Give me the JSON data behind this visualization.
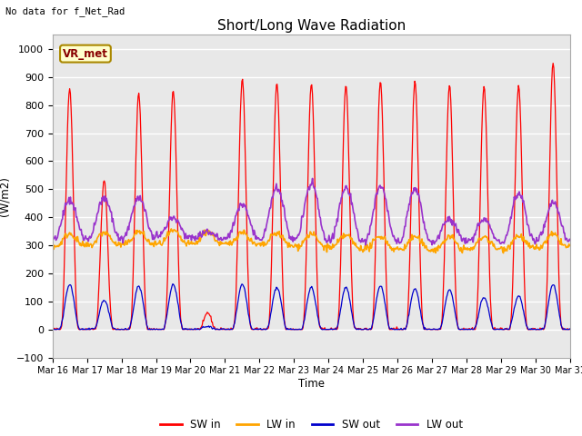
{
  "title": "Short/Long Wave Radiation",
  "ylabel": "(W/m2)",
  "xlabel": "Time",
  "top_left_text": "No data for f_Net_Rad",
  "legend_label_text": "VR_met",
  "ylim": [
    -100,
    1050
  ],
  "tick_labels": [
    "Mar 16",
    "Mar 17",
    "Mar 18",
    "Mar 19",
    "Mar 20",
    "Mar 21",
    "Mar 22",
    "Mar 23",
    "Mar 24",
    "Mar 25",
    "Mar 26",
    "Mar 27",
    "Mar 28",
    "Mar 29",
    "Mar 30",
    "Mar 31"
  ],
  "sw_in_color": "#FF0000",
  "lw_in_color": "#FFA500",
  "sw_out_color": "#0000CC",
  "lw_out_color": "#9933CC",
  "bg_color": "#E8E8E8",
  "grid_color": "#FFFFFF",
  "legend_items": [
    "SW in",
    "LW in",
    "SW out",
    "LW out"
  ]
}
